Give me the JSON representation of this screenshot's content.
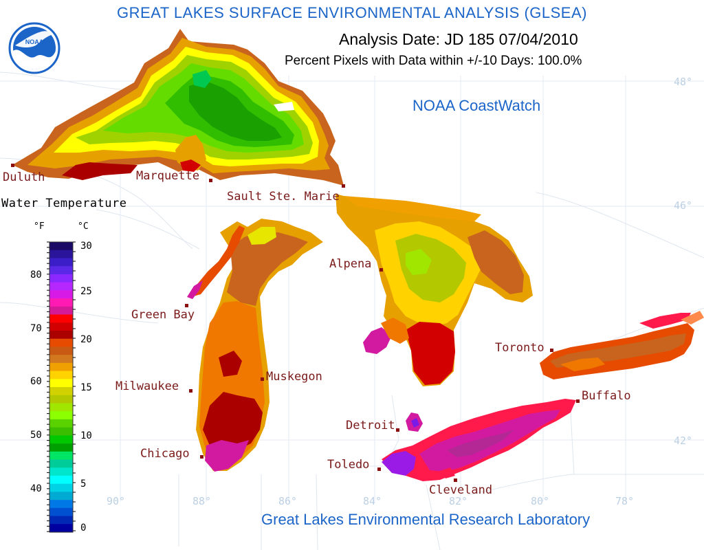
{
  "header": {
    "title": "GREAT LAKES SURFACE ENVIRONMENTAL ANALYSIS (GLSEA)",
    "analysis_date": "Analysis Date:  JD 185 07/04/2010",
    "percent_pixels": "Percent Pixels with Data within +/-10 Days: 100.0%",
    "coastwatch": "NOAA CoastWatch",
    "footer": "Great Lakes Environmental Research Laboratory"
  },
  "logo": {
    "text": "NOAA"
  },
  "legend": {
    "title": "Water Temperature",
    "unit_f": "°F",
    "unit_c": "°C",
    "f_ticks": [
      "80",
      "70",
      "60",
      "50",
      "40"
    ],
    "c_ticks": [
      "30",
      "25",
      "20",
      "15",
      "10",
      "5",
      "0"
    ],
    "colors": [
      "#1a0a66",
      "#2a1499",
      "#3c1ec8",
      "#5a28e6",
      "#8a28ff",
      "#b428ff",
      "#d81ae6",
      "#ff1ab4",
      "#d41a96",
      "#ff0000",
      "#d20000",
      "#aa0000",
      "#e64b00",
      "#c85a14",
      "#d2781e",
      "#f0a000",
      "#ffd200",
      "#ffff00",
      "#d2d200",
      "#b4c800",
      "#a0e600",
      "#8cff00",
      "#5ad200",
      "#3cbe00",
      "#00c800",
      "#00a000",
      "#00e664",
      "#00cc99",
      "#00e6cc",
      "#00ffff",
      "#00d2e6",
      "#00aad2",
      "#0078e6",
      "#0050d2",
      "#0028b4",
      "#0000a0"
    ]
  },
  "cities": [
    {
      "name": "Duluth"
    },
    {
      "name": "Marquette"
    },
    {
      "name": "Sault Ste. Marie"
    },
    {
      "name": "Green Bay"
    },
    {
      "name": "Alpena"
    },
    {
      "name": "Milwaukee"
    },
    {
      "name": "Muskegon"
    },
    {
      "name": "Toronto"
    },
    {
      "name": "Buffalo"
    },
    {
      "name": "Chicago"
    },
    {
      "name": "Detroit"
    },
    {
      "name": "Toledo"
    },
    {
      "name": "Cleveland"
    }
  ],
  "grid": {
    "lat_labels": [
      "48°",
      "46°",
      "42°"
    ],
    "lon_labels": [
      "90°",
      "88°",
      "86°",
      "84°",
      "82°",
      "80°",
      "78°"
    ]
  }
}
